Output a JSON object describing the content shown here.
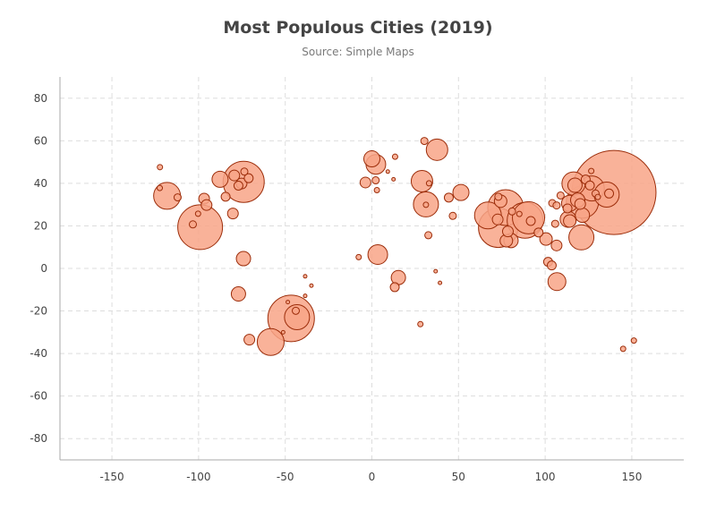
{
  "chart_data": {
    "type": "scatter",
    "title": "Most Populous Cities (2019)",
    "subtitle": "Source: Simple Maps",
    "xlabel": "",
    "ylabel": "",
    "xlim": [
      -180,
      180
    ],
    "ylim": [
      -90,
      90
    ],
    "xticks": [
      -150,
      -100,
      -50,
      0,
      50,
      100,
      150
    ],
    "yticks": [
      -80,
      -60,
      -40,
      -20,
      0,
      20,
      40,
      60,
      80
    ],
    "grid": true,
    "legend": "none",
    "point_fill": "#f8a587",
    "point_stroke": "#9c2d0a",
    "points": [
      {
        "x": 139.7,
        "y": 35.7,
        "r": 47
      },
      {
        "x": -99.1,
        "y": 19.4,
        "r": 25
      },
      {
        "x": -46.6,
        "y": -23.5,
        "r": 26
      },
      {
        "x": -74.0,
        "y": 40.7,
        "r": 23
      },
      {
        "x": 72.9,
        "y": 19.1,
        "r": 22
      },
      {
        "x": 77.2,
        "y": 28.6,
        "r": 20
      },
      {
        "x": 88.4,
        "y": 22.6,
        "r": 20
      },
      {
        "x": 121.5,
        "y": 31.2,
        "r": 18
      },
      {
        "x": 90.4,
        "y": 23.8,
        "r": 18
      },
      {
        "x": 67.0,
        "y": 24.9,
        "r": 15
      },
      {
        "x": 126.9,
        "y": 37.6,
        "r": 14
      },
      {
        "x": 135.5,
        "y": 34.7,
        "r": 14
      },
      {
        "x": 116.4,
        "y": 39.9,
        "r": 13
      },
      {
        "x": 120.9,
        "y": 14.6,
        "r": 14
      },
      {
        "x": -118.2,
        "y": 34.1,
        "r": 15
      },
      {
        "x": -58.4,
        "y": -34.6,
        "r": 15
      },
      {
        "x": -43.2,
        "y": -22.9,
        "r": 14
      },
      {
        "x": 31.2,
        "y": 30.1,
        "r": 14
      },
      {
        "x": 37.6,
        "y": 55.8,
        "r": 12
      },
      {
        "x": 28.9,
        "y": 41.0,
        "r": 12
      },
      {
        "x": 3.4,
        "y": 6.5,
        "r": 11
      },
      {
        "x": 2.3,
        "y": 48.9,
        "r": 11
      },
      {
        "x": 0.0,
        "y": 51.5,
        "r": 9
      },
      {
        "x": 51.4,
        "y": 35.7,
        "r": 9
      },
      {
        "x": 106.8,
        "y": -6.2,
        "r": 10
      },
      {
        "x": -87.6,
        "y": 41.9,
        "r": 9
      },
      {
        "x": 113.3,
        "y": 23.1,
        "r": 9
      },
      {
        "x": 114.1,
        "y": 30.6,
        "r": 9
      },
      {
        "x": 104.1,
        "y": 30.7,
        "r": 4
      },
      {
        "x": 74.3,
        "y": 31.6,
        "r": 7
      },
      {
        "x": 80.3,
        "y": 13.1,
        "r": 8
      },
      {
        "x": 77.6,
        "y": 13.0,
        "r": 7
      },
      {
        "x": 100.5,
        "y": 13.8,
        "r": 7
      },
      {
        "x": 78.5,
        "y": 17.4,
        "r": 6
      },
      {
        "x": 15.3,
        "y": -4.3,
        "r": 8
      },
      {
        "x": -77.0,
        "y": -12.0,
        "r": 8
      },
      {
        "x": -74.1,
        "y": 4.6,
        "r": 8
      },
      {
        "x": -70.7,
        "y": -33.5,
        "r": 6
      },
      {
        "x": -80.2,
        "y": 25.8,
        "r": 6
      },
      {
        "x": -96.8,
        "y": 32.8,
        "r": 6
      },
      {
        "x": -95.4,
        "y": 29.8,
        "r": 6
      },
      {
        "x": -84.4,
        "y": 33.7,
        "r": 5
      },
      {
        "x": -79.4,
        "y": 43.7,
        "r": 6
      },
      {
        "x": -75.2,
        "y": 39.9,
        "r": 6
      },
      {
        "x": -77.0,
        "y": 38.9,
        "r": 5
      },
      {
        "x": -71.1,
        "y": 42.4,
        "r": 5
      },
      {
        "x": -73.6,
        "y": 45.5,
        "r": 4
      },
      {
        "x": -122.4,
        "y": 37.8,
        "r": 3
      },
      {
        "x": -122.3,
        "y": 47.6,
        "r": 3
      },
      {
        "x": -112.1,
        "y": 33.4,
        "r": 4
      },
      {
        "x": -100.3,
        "y": 25.7,
        "r": 3
      },
      {
        "x": -103.3,
        "y": 20.7,
        "r": 4
      },
      {
        "x": -3.7,
        "y": 40.4,
        "r": 6
      },
      {
        "x": 2.2,
        "y": 41.4,
        "r": 4
      },
      {
        "x": 30.3,
        "y": 59.9,
        "r": 4
      },
      {
        "x": 12.5,
        "y": 41.9,
        "r": 2
      },
      {
        "x": 13.4,
        "y": 52.5,
        "r": 3
      },
      {
        "x": 9.2,
        "y": 45.5,
        "r": 2
      },
      {
        "x": 2.9,
        "y": 36.8,
        "r": 3
      },
      {
        "x": -7.6,
        "y": 5.3,
        "r": 3
      },
      {
        "x": 13.2,
        "y": -8.8,
        "r": 5
      },
      {
        "x": 28.0,
        "y": -26.2,
        "r": 3
      },
      {
        "x": 39.3,
        "y": -6.8,
        "r": 2
      },
      {
        "x": 32.6,
        "y": 15.6,
        "r": 4
      },
      {
        "x": 36.8,
        "y": -1.3,
        "r": 2
      },
      {
        "x": 31.2,
        "y": 29.9,
        "r": 3
      },
      {
        "x": 33.0,
        "y": 40.0,
        "r": 3
      },
      {
        "x": 44.4,
        "y": 33.3,
        "r": 5
      },
      {
        "x": 46.7,
        "y": 24.7,
        "r": 4
      },
      {
        "x": 72.6,
        "y": 23.0,
        "r": 6
      },
      {
        "x": 73.0,
        "y": 33.7,
        "r": 4
      },
      {
        "x": 80.9,
        "y": 26.8,
        "r": 4
      },
      {
        "x": 85.1,
        "y": 25.6,
        "r": 3
      },
      {
        "x": 91.7,
        "y": 22.3,
        "r": 5
      },
      {
        "x": 96.2,
        "y": 16.9,
        "r": 5
      },
      {
        "x": 101.7,
        "y": 3.1,
        "r": 5
      },
      {
        "x": 103.8,
        "y": 1.4,
        "r": 5
      },
      {
        "x": 105.8,
        "y": 21.0,
        "r": 4
      },
      {
        "x": 106.6,
        "y": 10.8,
        "r": 6
      },
      {
        "x": 106.6,
        "y": 29.6,
        "r": 4
      },
      {
        "x": 108.9,
        "y": 34.3,
        "r": 4
      },
      {
        "x": 112.9,
        "y": 28.2,
        "r": 5
      },
      {
        "x": 114.2,
        "y": 22.3,
        "r": 7
      },
      {
        "x": 117.2,
        "y": 39.1,
        "r": 8
      },
      {
        "x": 118.8,
        "y": 32.1,
        "r": 8
      },
      {
        "x": 120.2,
        "y": 30.3,
        "r": 6
      },
      {
        "x": 121.5,
        "y": 25.0,
        "r": 8
      },
      {
        "x": 123.4,
        "y": 41.8,
        "r": 5
      },
      {
        "x": 125.8,
        "y": 39.0,
        "r": 5
      },
      {
        "x": 126.6,
        "y": 45.8,
        "r": 3
      },
      {
        "x": 129.1,
        "y": 35.2,
        "r": 4
      },
      {
        "x": 130.4,
        "y": 33.6,
        "r": 3
      },
      {
        "x": 136.9,
        "y": 35.2,
        "r": 5
      },
      {
        "x": 145.0,
        "y": -37.8,
        "r": 3
      },
      {
        "x": 151.2,
        "y": -33.9,
        "r": 3
      },
      {
        "x": -38.5,
        "y": -3.7,
        "r": 2
      },
      {
        "x": -38.5,
        "y": -12.9,
        "r": 2
      },
      {
        "x": -34.9,
        "y": -8.1,
        "r": 2
      },
      {
        "x": -48.5,
        "y": -15.8,
        "r": 2
      },
      {
        "x": -43.9,
        "y": -19.9,
        "r": 4
      },
      {
        "x": -51.2,
        "y": -30.0,
        "r": 2
      }
    ]
  }
}
